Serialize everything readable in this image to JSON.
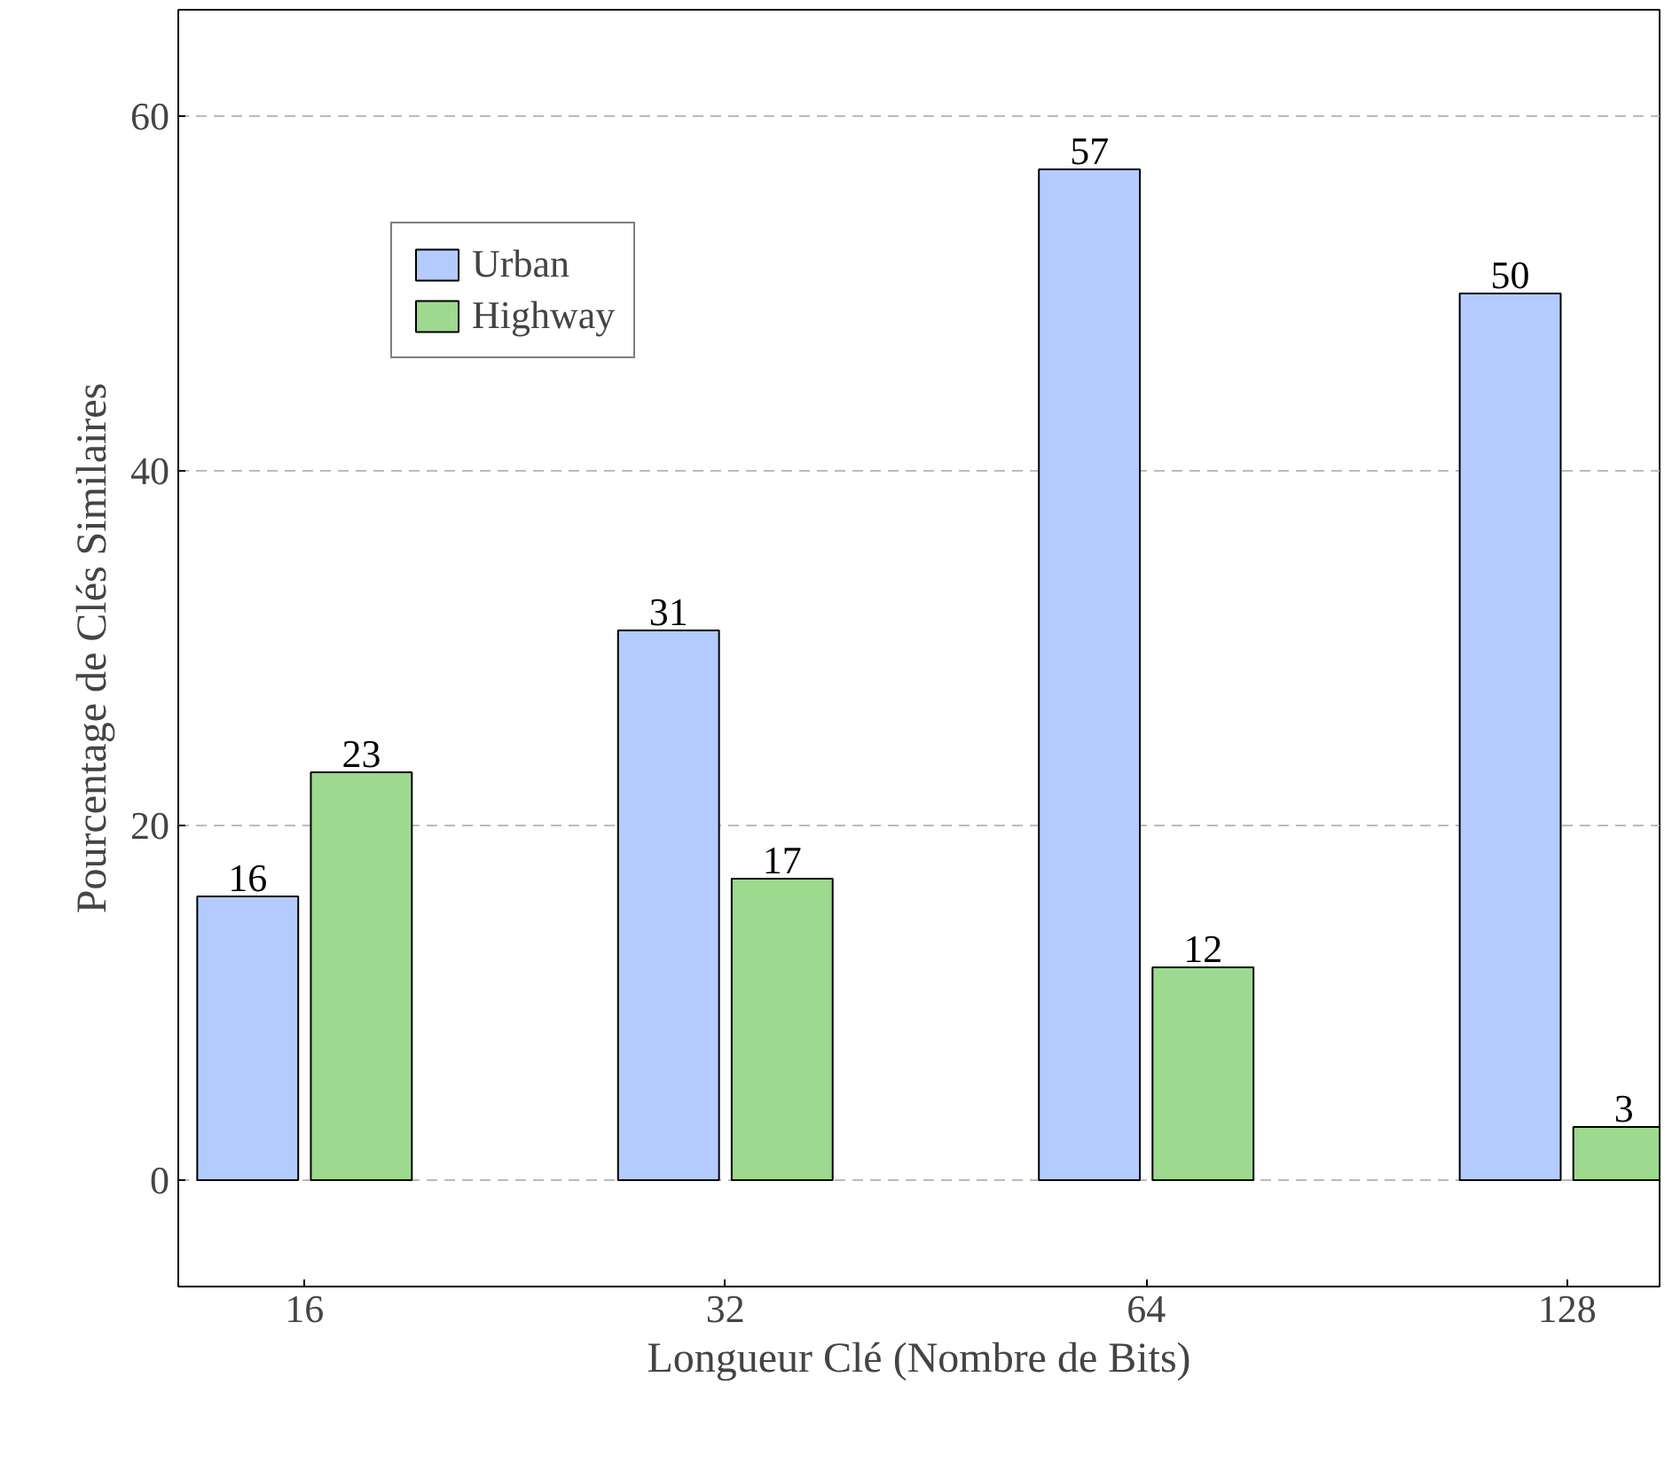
{
  "chart_data": {
    "type": "bar",
    "xlabel": "Longueur Clé (Nombre de Bits)",
    "ylabel": "Pourcentage de Clés Similaires",
    "categories": [
      "16",
      "32",
      "64",
      "128"
    ],
    "series": [
      {
        "name": "Urban",
        "color": "#b3cbff",
        "values": [
          16,
          31,
          57,
          50
        ]
      },
      {
        "name": "Highway",
        "color": "#9dd98f",
        "values": [
          23,
          17,
          12,
          3
        ]
      }
    ],
    "ylim": [
      -6,
      66
    ],
    "yticks": [
      0,
      20,
      40,
      60
    ],
    "grid": "y",
    "legend": "top left",
    "data_labels": true
  }
}
